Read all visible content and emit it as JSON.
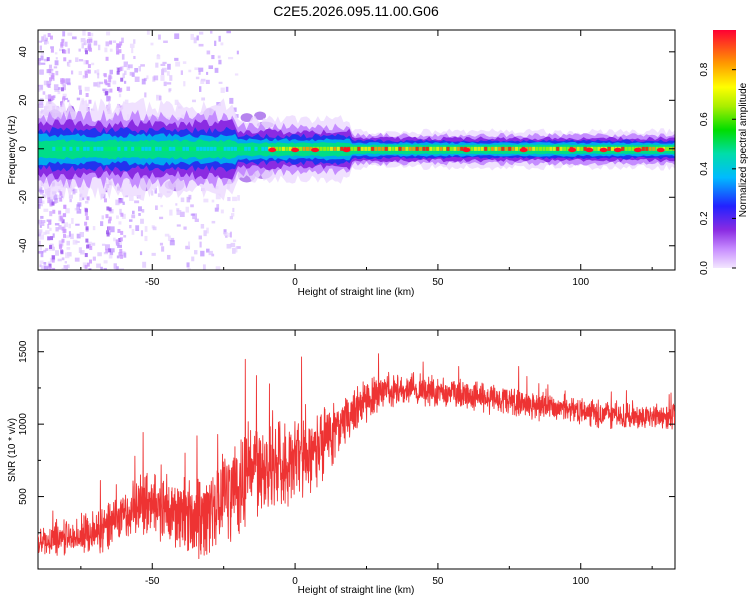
{
  "title": "C2E5.2026.095.11.00.G06",
  "chart_data": [
    {
      "type": "heatmap",
      "name": "spectrogram",
      "xlabel": "Height of straight line (km)",
      "ylabel": "Frequency (Hz)",
      "xlim": [
        -90,
        133
      ],
      "ylim": [
        -50,
        49
      ],
      "xticks": [
        -50,
        0,
        50,
        100
      ],
      "yticks": [
        -40,
        -20,
        0,
        20,
        40
      ],
      "colorbar": {
        "label": "Normalized spectral amplitude",
        "ticks": [
          0.0,
          0.2,
          0.4,
          0.6,
          0.8
        ],
        "range": [
          0,
          0.96
        ]
      }
    },
    {
      "type": "line",
      "name": "snr",
      "color": "#ee3333",
      "xlabel": "Height of straight line (km)",
      "ylabel": "SNR (10 * v/v)",
      "xlim": [
        -90,
        133
      ],
      "ylim": [
        0,
        1650
      ],
      "xticks": [
        -50,
        0,
        50,
        100
      ],
      "yticks": [
        500,
        1000,
        1500
      ],
      "trend_points": [
        [
          -90,
          200
        ],
        [
          -75,
          230
        ],
        [
          -70,
          250
        ],
        [
          -60,
          370
        ],
        [
          -55,
          450
        ],
        [
          -45,
          430
        ],
        [
          -38,
          380
        ],
        [
          -30,
          400
        ],
        [
          -22,
          560
        ],
        [
          -15,
          680
        ],
        [
          -5,
          740
        ],
        [
          5,
          800
        ],
        [
          10,
          880
        ],
        [
          15,
          980
        ],
        [
          20,
          1080
        ],
        [
          25,
          1160
        ],
        [
          30,
          1210
        ],
        [
          40,
          1240
        ],
        [
          50,
          1220
        ],
        [
          60,
          1200
        ],
        [
          70,
          1180
        ],
        [
          80,
          1140
        ],
        [
          90,
          1110
        ],
        [
          100,
          1090
        ],
        [
          110,
          1060
        ],
        [
          120,
          1050
        ],
        [
          133,
          1060
        ]
      ],
      "spread_points": [
        [
          -90,
          120
        ],
        [
          -60,
          200
        ],
        [
          -45,
          320
        ],
        [
          -30,
          380
        ],
        [
          -15,
          380
        ],
        [
          0,
          340
        ],
        [
          10,
          300
        ],
        [
          20,
          180
        ],
        [
          40,
          130
        ],
        [
          80,
          120
        ],
        [
          133,
          100
        ]
      ]
    }
  ]
}
